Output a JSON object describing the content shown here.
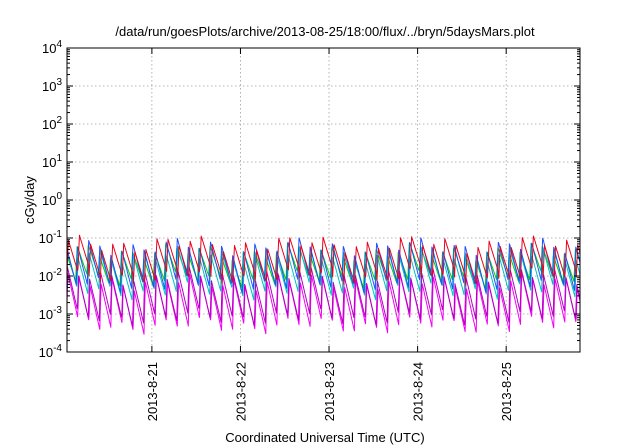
{
  "chart_data": {
    "type": "line",
    "title": "/data/run/goesPlots/archive/2013-08-25/18:00/flux/../bryn/5daysMars.plot",
    "xlabel": "Coordinated Universal Time (UTC)",
    "ylabel": "cGy/day",
    "yscale": "log",
    "ylim": [
      0.0001,
      10000
    ],
    "xlim": [
      "2013-08-20T01:00",
      "2013-08-25T20:00"
    ],
    "grid": true,
    "x_ticks": [
      {
        "label": "2013-8-21",
        "value": "2013-08-21T00:00"
      },
      {
        "label": "2013-8-22",
        "value": "2013-08-22T00:00"
      },
      {
        "label": "2013-8-23",
        "value": "2013-08-23T00:00"
      },
      {
        "label": "2013-8-24",
        "value": "2013-08-24T00:00"
      },
      {
        "label": "2013-8-25",
        "value": "2013-08-25T00:00"
      }
    ],
    "y_ticks": [
      {
        "base": "10",
        "exp": "-4",
        "value": 0.0001
      },
      {
        "base": "10",
        "exp": "-3",
        "value": 0.001
      },
      {
        "base": "10",
        "exp": "-2",
        "value": 0.01
      },
      {
        "base": "10",
        "exp": "-1",
        "value": 0.1
      },
      {
        "base": "10",
        "exp": "0",
        "value": 1
      },
      {
        "base": "10",
        "exp": "1",
        "value": 10
      },
      {
        "base": "10",
        "exp": "2",
        "value": 100
      },
      {
        "base": "10",
        "exp": "3",
        "value": 1000
      },
      {
        "base": "10",
        "exp": "4",
        "value": 10000
      }
    ],
    "period_hours": 3,
    "series": [
      {
        "color": "#e8001c",
        "peak": 0.07,
        "trough": 0.01
      },
      {
        "color": "#f400f4",
        "peak": 0.007,
        "trough": 0.0005
      },
      {
        "color": "#b000c0",
        "peak": 0.01,
        "trough": 0.0008
      },
      {
        "color": "#00c0c0",
        "peak": 0.035,
        "trough": 0.004
      },
      {
        "color": "#2050ff",
        "peak": 0.06,
        "trough": 0.006
      },
      {
        "color": "#00d000",
        "peak": 0.045,
        "trough": 0.008
      }
    ]
  }
}
